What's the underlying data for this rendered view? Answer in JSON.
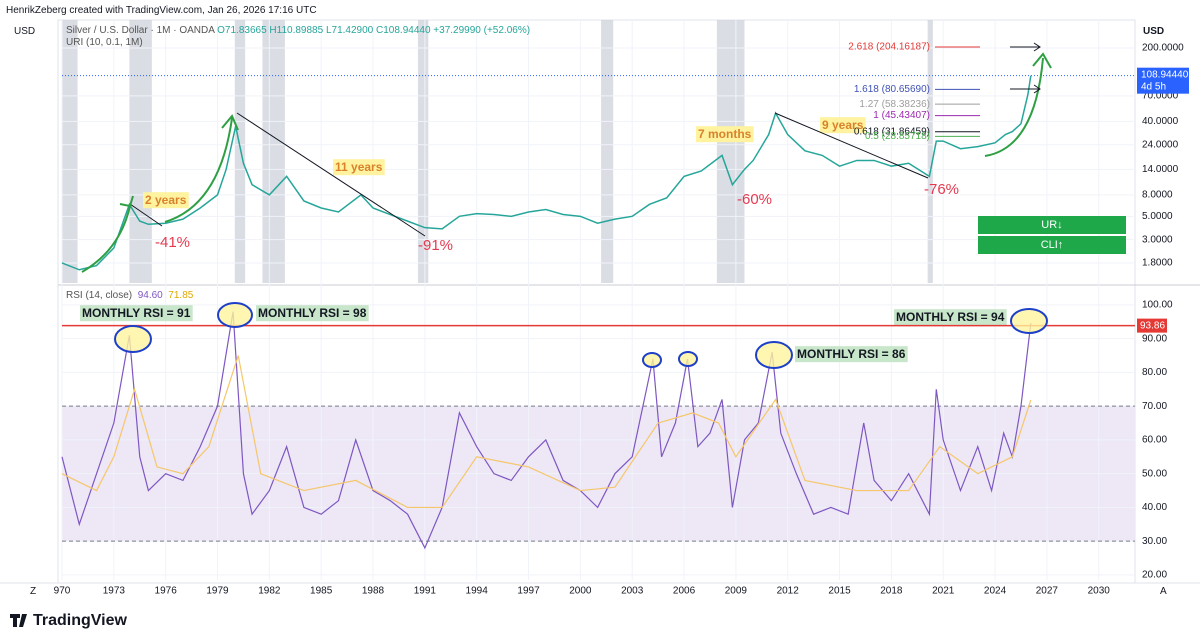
{
  "chart_data": {
    "type": "line",
    "header": "HenrikZeberg created with TradingView.com, Jan 26, 2026 17:16 UTC",
    "currency": "USD",
    "legend": {
      "symbol": "Silver / U.S. Dollar · 1M · OANDA",
      "ohlc": [
        "O71.83665",
        "H110.89885",
        "L71.42900",
        "C108.94440"
      ],
      "change": "+37.29990 (+52.06%)",
      "indicator": "URI (10, 0.1, 1M)"
    },
    "xlim": [
      1970,
      2032.1
    ],
    "xticks": [
      {
        "value": 1970,
        "label": "970"
      },
      1973,
      1976,
      1979,
      1982,
      1985,
      1988,
      1991,
      1994,
      1997,
      2000,
      2003,
      2006,
      2009,
      2012,
      2015,
      2018,
      2021,
      2024,
      2027,
      2030
    ],
    "ylim": [
      1.16,
      369
    ],
    "log_scale": true,
    "yticks": [
      {
        "value": 200,
        "label": "200.0000"
      },
      {
        "value": 70,
        "label": "70.0000"
      },
      {
        "value": 40,
        "label": "40.0000"
      },
      {
        "value": 24,
        "label": "24.0000"
      },
      {
        "value": 14,
        "label": "14.0000"
      },
      {
        "value": 8,
        "label": "8.0000"
      },
      {
        "value": 5,
        "label": "5.0000"
      },
      {
        "value": 3,
        "label": "3.0000"
      },
      {
        "value": 1.8,
        "label": "1.8000"
      }
    ],
    "series": [
      {
        "name": "Silver",
        "color": "#26a69a",
        "x": [
          1970,
          1971,
          1972,
          1973,
          1973.9,
          1974.5,
          1975,
          1976,
          1977,
          1978,
          1979,
          1979.5,
          1980.05,
          1980.5,
          1981,
          1982,
          1983,
          1984,
          1985,
          1986,
          1987.3,
          1988,
          1989,
          1990,
          1991,
          1992,
          1993,
          1994,
          1995,
          1996,
          1997,
          1998,
          1999,
          2000,
          2001,
          2002,
          2003,
          2004,
          2005,
          2006,
          2007,
          2008.2,
          2008.8,
          2009.5,
          2010,
          2010.9,
          2011.3,
          2012,
          2013,
          2014,
          2015,
          2016,
          2017,
          2018,
          2019,
          2020.2,
          2020.6,
          2021,
          2022,
          2023,
          2024,
          2024.6,
          2025,
          2025.5,
          2025.9,
          2026.07
        ],
        "values": [
          1.8,
          1.55,
          1.7,
          2.5,
          6.5,
          4.5,
          4.2,
          4.3,
          4.7,
          6,
          8,
          14,
          36,
          16,
          10,
          8,
          12,
          7,
          6,
          5.5,
          8,
          6,
          5.2,
          4.5,
          3.9,
          3.8,
          5,
          5.3,
          5.2,
          5,
          5.5,
          5.8,
          5.2,
          5,
          4.3,
          4.7,
          5,
          6.5,
          7.5,
          12,
          13.5,
          19,
          10,
          14,
          17,
          30,
          48,
          30,
          21,
          19,
          15,
          17,
          17,
          15,
          16,
          12,
          26,
          26,
          22,
          23,
          25,
          30,
          32,
          38,
          72,
          108.94
        ]
      }
    ],
    "current_price": {
      "value": 108.9444,
      "label": "108.94440",
      "countdown": "4d 5h",
      "color": "#2962ff"
    },
    "recessions": [
      [
        1970,
        1970.9
      ],
      [
        1973.9,
        1975.2
      ],
      [
        1980,
        1980.6
      ],
      [
        1981.6,
        1982.9
      ],
      [
        1990.6,
        1991.2
      ],
      [
        2001.2,
        2001.9
      ],
      [
        2007.9,
        2009.5
      ],
      [
        2020.1,
        2020.4
      ]
    ],
    "fib": [
      {
        "label": "2.618 (204.16187)",
        "value": 204.16187,
        "color": "#e53935"
      },
      {
        "label": "1.618 (80.65690)",
        "value": 80.6569,
        "color": "#3f51b5"
      },
      {
        "label": "1.27 (58.38236)",
        "value": 58.38236,
        "color": "#9e9e9e"
      },
      {
        "label": "1 (45.43407)",
        "value": 45.43407,
        "color": "#9c27b0"
      },
      {
        "label": "0.618 (31.86459)",
        "value": 31.86459,
        "color": "#131722"
      },
      {
        "label": "0.5 (28.85718)",
        "value": 28.85718,
        "color": "#4caf50"
      }
    ],
    "annotations": [
      "2 years",
      "-41%",
      "11 years",
      "-91%",
      "7 months",
      "-60%",
      "9 years",
      "-76%"
    ],
    "signals": [
      "UR↓",
      "CLI↑"
    ],
    "rsi": {
      "title": "RSI (14, close)",
      "readings": [
        "94.60",
        "71.85"
      ],
      "ylim": [
        18.5,
        105.3
      ],
      "yticks": [
        {
          "value": 100,
          "label": "100.00"
        },
        {
          "value": 90,
          "label": "90.00"
        },
        {
          "value": 80,
          "label": "80.00"
        },
        {
          "value": 70,
          "label": "70.00"
        },
        {
          "value": 60,
          "label": "60.00"
        },
        {
          "value": 50,
          "label": "50.00"
        },
        {
          "value": 40,
          "label": "40.00"
        },
        {
          "value": 30,
          "label": "30.00"
        },
        {
          "value": 20,
          "label": "20.00"
        }
      ],
      "band": [
        30,
        70
      ],
      "threshold": {
        "value": 93.86,
        "label": "93.86",
        "color": "#e53935"
      },
      "series": [
        {
          "name": "RSI",
          "color": "#7e57c2",
          "x": [
            1970,
            1971,
            1972,
            1973,
            1973.9,
            1974.5,
            1975,
            1976,
            1977,
            1978,
            1979,
            1979.9,
            1980.5,
            1981,
            1982,
            1983,
            1984,
            1985,
            1986,
            1987,
            1988,
            1989,
            1990,
            1991,
            1992,
            1993,
            1994,
            1995,
            1996,
            1997,
            1998,
            1999,
            2000,
            2001,
            2002,
            2003,
            2004.2,
            2004.7,
            2005.5,
            2006.2,
            2006.8,
            2007.5,
            2008.2,
            2008.8,
            2009.5,
            2010.3,
            2011.1,
            2011.6,
            2012.5,
            2013.5,
            2014.5,
            2015.5,
            2016.4,
            2017,
            2018,
            2019,
            2020.2,
            2020.6,
            2021,
            2022,
            2023,
            2023.8,
            2024.5,
            2025,
            2025.5,
            2026.07
          ],
          "values": [
            55,
            35,
            50,
            65,
            91,
            55,
            45,
            50,
            48,
            58,
            70,
            98,
            50,
            38,
            45,
            58,
            40,
            38,
            42,
            60,
            45,
            42,
            38,
            28,
            40,
            68,
            58,
            50,
            48,
            55,
            60,
            48,
            45,
            40,
            50,
            55,
            84,
            55,
            65,
            84,
            58,
            62,
            72,
            40,
            60,
            65,
            86,
            62,
            50,
            38,
            40,
            38,
            65,
            48,
            42,
            50,
            38,
            75,
            60,
            45,
            58,
            45,
            62,
            55,
            70,
            94.6
          ]
        },
        {
          "name": "RSI-based MA",
          "color": "#f5c76a",
          "x": [
            1970,
            1972,
            1973,
            1974.2,
            1975.5,
            1977,
            1978.5,
            1980.2,
            1981.5,
            1984,
            1987,
            1990,
            1992,
            1994,
            1997,
            2000,
            2002,
            2004.5,
            2006.5,
            2008,
            2009,
            2011.3,
            2013,
            2016,
            2019,
            2020.8,
            2023,
            2025,
            2026.07
          ],
          "values": [
            50,
            45,
            55,
            75,
            52,
            50,
            58,
            85,
            50,
            45,
            48,
            40,
            40,
            55,
            52,
            45,
            46,
            65,
            68,
            65,
            55,
            72,
            48,
            45,
            45,
            58,
            50,
            55,
            71.85
          ]
        }
      ],
      "callouts": [
        "MONTHLY RSI = 91",
        "MONTHLY RSI = 98",
        "MONTHLY RSI = 86",
        "MONTHLY RSI = 94"
      ]
    },
    "corner_left": "Z",
    "corner_right": "A",
    "brand": "TradingView"
  }
}
